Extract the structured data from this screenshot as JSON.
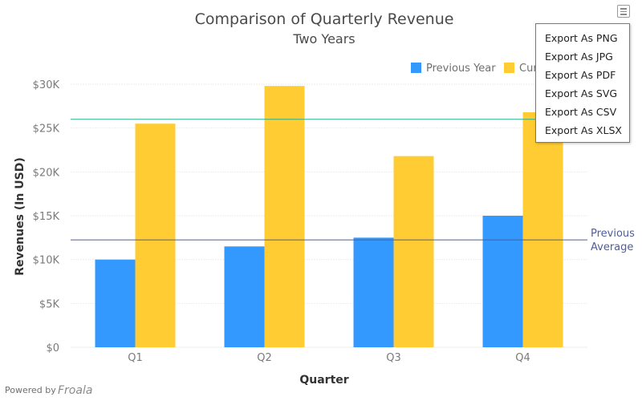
{
  "chart_data": {
    "type": "bar",
    "title": "Comparison of Quarterly Revenue",
    "subtitle": "Two Years",
    "xlabel": "Quarter",
    "ylabel": "Revenues (In USD)",
    "categories": [
      "Q1",
      "Q2",
      "Q3",
      "Q4"
    ],
    "series": [
      {
        "name": "Previous Year",
        "values": [
          10000,
          11500,
          12500,
          15000
        ],
        "color": "#3399ff"
      },
      {
        "name": "Current Year",
        "values": [
          25500,
          29800,
          21800,
          26800
        ],
        "color": "#ffcc33"
      }
    ],
    "ylim": [
      0,
      30000
    ],
    "yticks": [
      {
        "value": 0,
        "label": "$0"
      },
      {
        "value": 5000,
        "label": "$5K"
      },
      {
        "value": 10000,
        "label": "$10K"
      },
      {
        "value": 15000,
        "label": "$15K"
      },
      {
        "value": 20000,
        "label": "$20K"
      },
      {
        "value": 25000,
        "label": "$25K"
      },
      {
        "value": 30000,
        "label": "$30K"
      }
    ],
    "trendlines": [
      {
        "value": 26000,
        "label": "",
        "color": "#29b08a"
      },
      {
        "value": 12250,
        "label": "Previous Average",
        "color": "#4f5d9a"
      }
    ],
    "legend_position": "top-right",
    "grid": true
  },
  "export_menu": {
    "items": [
      "Export As PNG",
      "Export As JPG",
      "Export As PDF",
      "Export As SVG",
      "Export As CSV",
      "Export As XLSX"
    ]
  },
  "credit": {
    "powered_by": "Powered by",
    "brand": "Froala"
  }
}
